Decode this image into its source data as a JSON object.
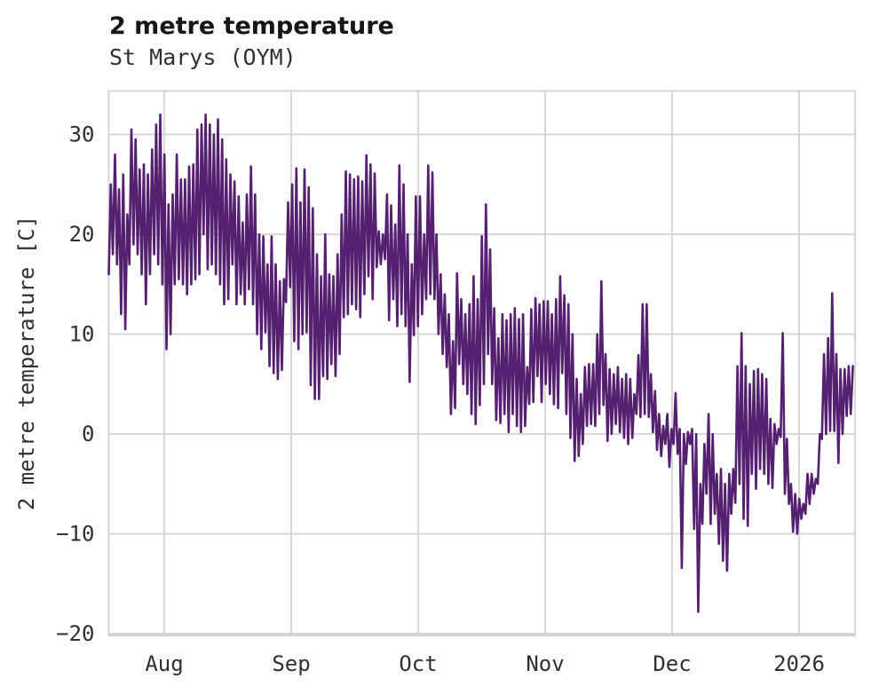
{
  "title": "2 metre temperature",
  "subtitle": "St Marys (OYM)",
  "y_axis": {
    "label": "2 metre temperature [C]",
    "tick_values": [
      30,
      20,
      10,
      0,
      -10,
      -20
    ],
    "tick_labels": [
      "30",
      "20",
      "10",
      "0",
      "−10",
      "−20"
    ]
  },
  "x_axis": {
    "tick_labels": [
      "Aug",
      "Sep",
      "Oct",
      "Nov",
      "Dec",
      "2026"
    ]
  },
  "colors": {
    "line": "#552070",
    "grid": "#d3d3d3",
    "border": "#d3d3d3",
    "title_text": "#161616",
    "tick_text": "#303030",
    "background": "#ffffff"
  },
  "chart_data": {
    "type": "line",
    "title": "2 metre temperature",
    "subtitle": "St Marys (OYM)",
    "ylabel": "2 metre temperature [C]",
    "ylim": [
      -20,
      34.4
    ],
    "x_tick_labels": [
      "Aug",
      "Sep",
      "Oct",
      "Nov",
      "Dec",
      "2026"
    ],
    "y_tick_values": [
      30,
      20,
      10,
      0,
      -10,
      -20
    ],
    "grid": true,
    "legend": "none",
    "series_name": "2 metre temperature [C]",
    "x_unit": "half-day steps from mid-July to mid-January; values alternate daily min / daily max",
    "points": [
      16,
      25,
      18,
      28,
      17,
      24.5,
      12,
      26,
      10.5,
      22,
      17,
      30.5,
      19,
      29.5,
      18,
      26.5,
      16,
      27,
      13,
      26,
      16,
      28.5,
      18,
      31,
      17,
      32,
      15,
      28,
      8.5,
      23,
      10,
      24,
      15,
      28,
      15.5,
      25.5,
      15,
      25.5,
      14,
      26.8,
      15,
      27,
      15.5,
      30.5,
      16,
      31,
      20,
      32,
      16.5,
      31,
      17,
      30,
      16,
      31.5,
      15,
      29.5,
      13,
      27.5,
      13.5,
      26,
      17,
      25.3,
      13,
      23.8,
      14,
      21.2,
      13,
      24,
      14.5,
      26.8,
      13,
      24,
      10,
      20,
      8.5,
      19.8,
      10.2,
      17,
      6.8,
      19.8,
      6.1,
      17,
      5.5,
      15.3,
      6.4,
      15.5,
      13.2,
      23.2,
      14.7,
      25,
      9.3,
      26.6,
      8.5,
      23.2,
      10,
      26.5,
      10.2,
      24.7,
      4.9,
      22.6,
      3.5,
      18,
      3.5,
      15.8,
      5.8,
      20,
      5.5,
      16,
      7,
      15.8,
      5.8,
      18,
      8,
      22,
      11.7,
      26.3,
      12,
      26,
      13,
      25.5,
      12.5,
      25.8,
      11.7,
      25.3,
      14,
      27.9,
      15.8,
      27,
      13.5,
      26.1,
      16.7,
      20.3,
      17,
      20,
      17.5,
      24,
      11.4,
      22.9,
      13.5,
      21,
      10.8,
      26.9,
      12,
      25,
      10.8,
      20,
      5.2,
      17,
      9.9,
      23.8,
      10.8,
      23.8,
      12,
      20,
      13.5,
      26.9,
      14,
      26.2,
      13.5,
      20,
      10,
      16,
      8,
      14,
      6.7,
      12,
      2,
      9.3,
      2.6,
      16.1,
      7,
      13.5,
      5,
      12,
      4,
      13,
      2,
      15.8,
      1,
      13.5,
      2.9,
      19.8,
      5,
      23,
      8,
      18.5,
      5,
      12.6,
      1.4,
      9.6,
      1.1,
      12,
      2,
      11.4,
      0.2,
      12,
      2,
      12.6,
      0.8,
      11.5,
      0.2,
      12,
      0.8,
      6.7,
      3,
      12.5,
      3.2,
      13.6,
      5.8,
      13,
      3.2,
      13.3,
      5,
      13.3,
      4,
      12,
      3,
      13.5,
      2.6,
      15.8,
      6.1,
      13.9,
      2,
      13,
      -0.4,
      10,
      -2.7,
      5.5,
      -2.2,
      4,
      -1,
      6.7,
      0.8,
      7,
      1,
      7,
      0.8,
      10,
      2,
      15.3,
      2.9,
      8,
      -0.7,
      6.5,
      0,
      6,
      1,
      6.7,
      0.2,
      5.5,
      -0.4,
      6,
      -1,
      5.5,
      -0.4,
      4,
      2,
      7.9,
      1.7,
      13,
      2,
      13,
      1.7,
      6,
      0.2,
      4.3,
      -1.6,
      2,
      -2.2,
      0.8,
      -1,
      2,
      -3.3,
      0.5,
      -1,
      4.1,
      -2,
      0.5,
      -13.4,
      0,
      -3,
      0.2,
      -1,
      0.5,
      -9.5,
      0,
      -17.8,
      -5,
      -9,
      -1,
      -6,
      2,
      -9,
      0,
      -8,
      -4,
      -11,
      -3.5,
      -12.7,
      -5,
      -13.7,
      -4,
      -8,
      -3.5,
      -6.9,
      6.8,
      -5,
      10.1,
      -8.5,
      6.8,
      -9.2,
      5,
      -4,
      6.3,
      -5.5,
      6.5,
      -3.5,
      6,
      -4,
      5.5,
      -5,
      1.5,
      -5.4,
      1,
      -1,
      0.5,
      -0.3,
      10.1,
      -6,
      -0.5,
      -7,
      -5,
      -9.8,
      -6,
      -10,
      -6.5,
      -8.5,
      -7,
      -8,
      -4,
      -7,
      -4,
      -6,
      -4.5,
      -5,
      0,
      -0.5,
      8,
      0,
      9.6,
      0.3,
      14.1,
      0.3,
      8,
      -2.9,
      6.5,
      0,
      6.5,
      1.8,
      6.8,
      2,
      6.8
    ]
  }
}
